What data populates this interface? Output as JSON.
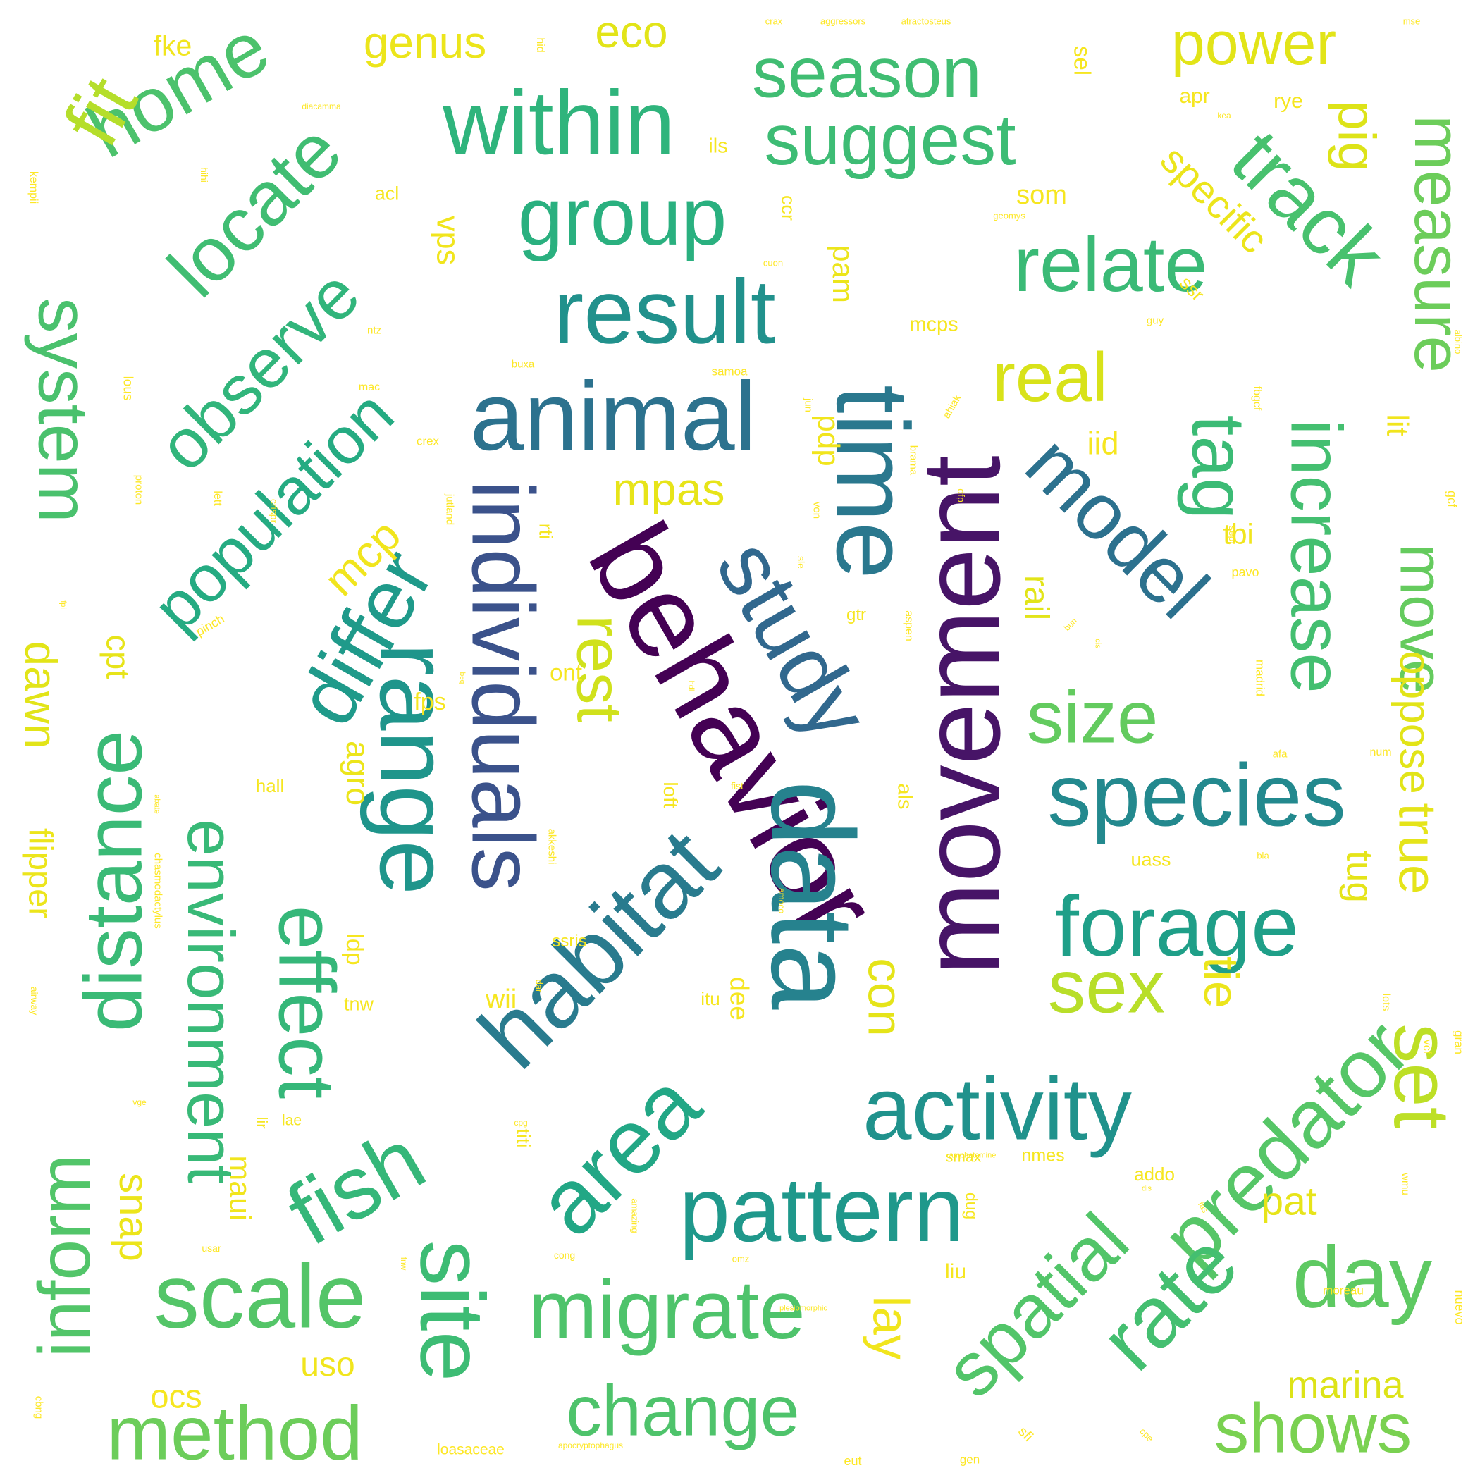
{
  "words": [
    {
      "t": "behavior",
      "c": "#440154"
    },
    {
      "t": "movement",
      "c": "#471467"
    },
    {
      "t": "individuals",
      "c": "#3b528b"
    },
    {
      "t": "study",
      "c": "#31688e"
    },
    {
      "t": "data",
      "c": "#26828e"
    },
    {
      "t": "time",
      "c": "#2a788e"
    },
    {
      "t": "model",
      "c": "#2c718e"
    },
    {
      "t": "animal",
      "c": "#2c728e"
    },
    {
      "t": "habitat",
      "c": "#297b8e"
    },
    {
      "t": "species",
      "c": "#23898e"
    },
    {
      "t": "result",
      "c": "#21918c"
    },
    {
      "t": "range",
      "c": "#1f958b"
    },
    {
      "t": "forage",
      "c": "#1f9f88"
    },
    {
      "t": "activity",
      "c": "#20928c"
    },
    {
      "t": "pattern",
      "c": "#1f988b"
    },
    {
      "t": "area",
      "c": "#22a785"
    },
    {
      "t": "differ",
      "c": "#1f9a8a"
    },
    {
      "t": "population",
      "c": "#25ab82"
    },
    {
      "t": "group",
      "c": "#2ab07f"
    },
    {
      "t": "effect",
      "c": "#35b779"
    },
    {
      "t": "tag",
      "c": "#3bbb75"
    },
    {
      "t": "increase",
      "c": "#44bf70"
    },
    {
      "t": "relate",
      "c": "#3aba76"
    },
    {
      "t": "within",
      "c": "#2fb47c"
    },
    {
      "t": "season",
      "c": "#40bd72"
    },
    {
      "t": "suggest",
      "c": "#3dbc74"
    },
    {
      "t": "track",
      "c": "#48c16e"
    },
    {
      "t": "fish",
      "c": "#35b779"
    },
    {
      "t": "site",
      "c": "#3dbc74"
    },
    {
      "t": "environment",
      "c": "#38b977"
    },
    {
      "t": "distance",
      "c": "#3aba76"
    },
    {
      "t": "system",
      "c": "#4ac16d"
    },
    {
      "t": "observe",
      "c": "#31b57b"
    },
    {
      "t": "locate",
      "c": "#40bd72"
    },
    {
      "t": "home",
      "c": "#4cc26c"
    },
    {
      "t": "spatial",
      "c": "#52c569"
    },
    {
      "t": "predator",
      "c": "#56c667"
    },
    {
      "t": "rate",
      "c": "#44bf70"
    },
    {
      "t": "day",
      "c": "#5ec962"
    },
    {
      "t": "migrate",
      "c": "#4ec36b"
    },
    {
      "t": "change",
      "c": "#4ec36b"
    },
    {
      "t": "method",
      "c": "#6ccd5a"
    },
    {
      "t": "scale",
      "c": "#54c568"
    },
    {
      "t": "inform",
      "c": "#52c569"
    },
    {
      "t": "measure",
      "c": "#6ccd5a"
    },
    {
      "t": "move",
      "c": "#65cb5e"
    },
    {
      "t": "size",
      "c": "#63cb5f"
    },
    {
      "t": "shows",
      "c": "#7ad151"
    },
    {
      "t": "fit",
      "c": "#b5de2b"
    },
    {
      "t": "sex",
      "c": "#b8de29"
    },
    {
      "t": "set",
      "c": "#bddf26"
    },
    {
      "t": "real",
      "c": "#d8e219"
    },
    {
      "t": "rest",
      "c": "#d0e11c"
    },
    {
      "t": "power",
      "c": "#e2e418"
    },
    {
      "t": "true",
      "c": "#e5e419"
    },
    {
      "t": "tie",
      "c": "#ece51b"
    },
    {
      "t": "mpas",
      "c": "#e7e419"
    },
    {
      "t": "dawn",
      "c": "#e2e418"
    },
    {
      "t": "lay",
      "c": "#f1e51d"
    },
    {
      "t": "pig",
      "c": "#dde318"
    },
    {
      "t": "oppose",
      "c": "#e2e418"
    },
    {
      "t": "marina",
      "c": "#dde318"
    },
    {
      "t": "genus",
      "c": "#ece51b"
    },
    {
      "t": "eco",
      "c": "#e2e418"
    },
    {
      "t": "mcp",
      "c": "#f1e51d"
    },
    {
      "t": "snap",
      "c": "#ece51b"
    },
    {
      "t": "con",
      "c": "#e5e419"
    },
    {
      "t": "specific",
      "c": "#ece51b"
    },
    {
      "t": "pat",
      "c": "#e7e419"
    },
    {
      "t": "tug",
      "c": "#e5e419"
    },
    {
      "t": "maui",
      "c": "#f1e51d"
    },
    {
      "t": "rail",
      "c": "#e2e418"
    },
    {
      "t": "agro",
      "c": "#ece51b"
    },
    {
      "t": "uso",
      "c": "#f1e51d"
    },
    {
      "t": "ocs",
      "c": "#f6e620"
    },
    {
      "t": "flipper",
      "c": "#ece51b"
    },
    {
      "t": "cpt",
      "c": "#e7e419"
    },
    {
      "t": "pam",
      "c": "#ece51b"
    },
    {
      "t": "fke",
      "c": "#f1e51d"
    },
    {
      "t": "vps",
      "c": "#f1e51d"
    },
    {
      "t": "iid",
      "c": "#f6e620"
    },
    {
      "t": "tbi",
      "c": "#f1e51d"
    },
    {
      "t": "lit",
      "c": "#f1e51d"
    },
    {
      "t": "pdp",
      "c": "#f1e51d"
    },
    {
      "t": "som",
      "c": "#f6e620"
    },
    {
      "t": "sel",
      "c": "#f6e620"
    },
    {
      "t": "apr",
      "c": "#f6e620"
    },
    {
      "t": "rye",
      "c": "#f6e620"
    },
    {
      "t": "ils",
      "c": "#f6e620"
    },
    {
      "t": "acl",
      "c": "#f6e620"
    },
    {
      "t": "ccr",
      "c": "#f6e620"
    },
    {
      "t": "ssr",
      "c": "#f6e620"
    },
    {
      "t": "mcps",
      "c": "#f6e620"
    },
    {
      "t": "loft",
      "c": "#f6e620"
    },
    {
      "t": "rti",
      "c": "#f6e620"
    },
    {
      "t": "ont",
      "c": "#f6e620"
    },
    {
      "t": "fps",
      "c": "#f6e620"
    },
    {
      "t": "hall",
      "c": "#f6e620"
    },
    {
      "t": "als",
      "c": "#f6e620"
    },
    {
      "t": "gtr",
      "c": "#f6e620"
    },
    {
      "t": "uass",
      "c": "#f6e620"
    },
    {
      "t": "ldp",
      "c": "#f6e620"
    },
    {
      "t": "dee",
      "c": "#f6e620"
    },
    {
      "t": "itu",
      "c": "#f6e620"
    },
    {
      "t": "wii",
      "c": "#f6e620"
    },
    {
      "t": "ssris",
      "c": "#f6e620"
    },
    {
      "t": "tnw",
      "c": "#f6e620"
    },
    {
      "t": "lae",
      "c": "#f6e620"
    },
    {
      "t": "lir",
      "c": "#f6e620"
    },
    {
      "t": "titi",
      "c": "#f6e620"
    },
    {
      "t": "dug",
      "c": "#f6e620"
    },
    {
      "t": "smax",
      "c": "#f6e620"
    },
    {
      "t": "nmes",
      "c": "#f6e620"
    },
    {
      "t": "addo",
      "c": "#f6e620"
    },
    {
      "t": "liu",
      "c": "#f6e620"
    },
    {
      "t": "nuevo",
      "c": "#fde725"
    },
    {
      "t": "moreau",
      "c": "#fde725"
    },
    {
      "t": "wmu",
      "c": "#fde725"
    },
    {
      "t": "gran",
      "c": "#fde725"
    },
    {
      "t": "vcf",
      "c": "#fde725"
    },
    {
      "t": "lots",
      "c": "#fde725"
    },
    {
      "t": "gcf",
      "c": "#fde725"
    },
    {
      "t": "num",
      "c": "#fde725"
    },
    {
      "t": "afa",
      "c": "#fde725"
    },
    {
      "t": "madrid",
      "c": "#fde725"
    },
    {
      "t": "pavo",
      "c": "#fde725"
    },
    {
      "t": "sept",
      "c": "#fde725"
    },
    {
      "t": "fbgcf",
      "c": "#fde725"
    },
    {
      "t": "albino",
      "c": "#fde725"
    },
    {
      "t": "guy",
      "c": "#fde725"
    },
    {
      "t": "samoa",
      "c": "#fde725"
    },
    {
      "t": "buxa",
      "c": "#fde725"
    },
    {
      "t": "jun",
      "c": "#fde725"
    },
    {
      "t": "ahiak",
      "c": "#fde725"
    },
    {
      "t": "brama",
      "c": "#fde725"
    },
    {
      "t": "dfp",
      "c": "#fde725"
    },
    {
      "t": "crex",
      "c": "#fde725"
    },
    {
      "t": "lett",
      "c": "#fde725"
    },
    {
      "t": "proton",
      "c": "#fde725"
    },
    {
      "t": "lous",
      "c": "#fde725"
    },
    {
      "t": "mac",
      "c": "#fde725"
    },
    {
      "t": "ntz",
      "c": "#fde725"
    },
    {
      "t": "cuon",
      "c": "#fde725"
    },
    {
      "t": "geomys",
      "c": "#fde725"
    },
    {
      "t": "kea",
      "c": "#fde725"
    },
    {
      "t": "hid",
      "c": "#fde725"
    },
    {
      "t": "crax",
      "c": "#fde725"
    },
    {
      "t": "aggressors",
      "c": "#fde725"
    },
    {
      "t": "atractosteus",
      "c": "#fde725"
    },
    {
      "t": "mse",
      "c": "#fde725"
    },
    {
      "t": "diacamma",
      "c": "#fde725"
    },
    {
      "t": "kempii",
      "c": "#fde725"
    },
    {
      "t": "hihi",
      "c": "#fde725"
    },
    {
      "t": "von",
      "c": "#fde725"
    },
    {
      "t": "jutland",
      "c": "#fde725"
    },
    {
      "t": "crispr",
      "c": "#fde725"
    },
    {
      "t": "fpi",
      "c": "#fde725"
    },
    {
      "t": "pinch",
      "c": "#fde725"
    },
    {
      "t": "sle",
      "c": "#fde725"
    },
    {
      "t": "aspen",
      "c": "#fde725"
    },
    {
      "t": "bun",
      "c": "#fde725"
    },
    {
      "t": "cis",
      "c": "#fde725"
    },
    {
      "t": "hdl",
      "c": "#fde725"
    },
    {
      "t": "beq",
      "c": "#fde725"
    },
    {
      "t": "fist",
      "c": "#fde725"
    },
    {
      "t": "abate",
      "c": "#fde725"
    },
    {
      "t": "chasmodactylus",
      "c": "#fde725"
    },
    {
      "t": "akkeshi",
      "c": "#fde725"
    },
    {
      "t": "bla",
      "c": "#fde725"
    },
    {
      "t": "amoco",
      "c": "#fde725"
    },
    {
      "t": "dar",
      "c": "#fde725"
    },
    {
      "t": "airway",
      "c": "#fde725"
    },
    {
      "t": "vge",
      "c": "#fde725"
    },
    {
      "t": "cpg",
      "c": "#fde725"
    },
    {
      "t": "amphetamine",
      "c": "#fde725"
    },
    {
      "t": "amazing",
      "c": "#fde725"
    },
    {
      "t": "fas",
      "c": "#fde725"
    },
    {
      "t": "dis",
      "c": "#fde725"
    },
    {
      "t": "usar",
      "c": "#fde725"
    },
    {
      "t": "cong",
      "c": "#fde725"
    },
    {
      "t": "fnw",
      "c": "#fde725"
    },
    {
      "t": "omz",
      "c": "#fde725"
    },
    {
      "t": "plesiomorphic",
      "c": "#fde725"
    },
    {
      "t": "cbng",
      "c": "#fde725"
    },
    {
      "t": "loasaceae",
      "c": "#fde725"
    },
    {
      "t": "apocryptophagus",
      "c": "#fde725"
    },
    {
      "t": "sfi",
      "c": "#fde725"
    },
    {
      "t": "gen",
      "c": "#fde725"
    },
    {
      "t": "eut",
      "c": "#fde725"
    },
    {
      "t": "cpe",
      "c": "#fde725"
    }
  ]
}
